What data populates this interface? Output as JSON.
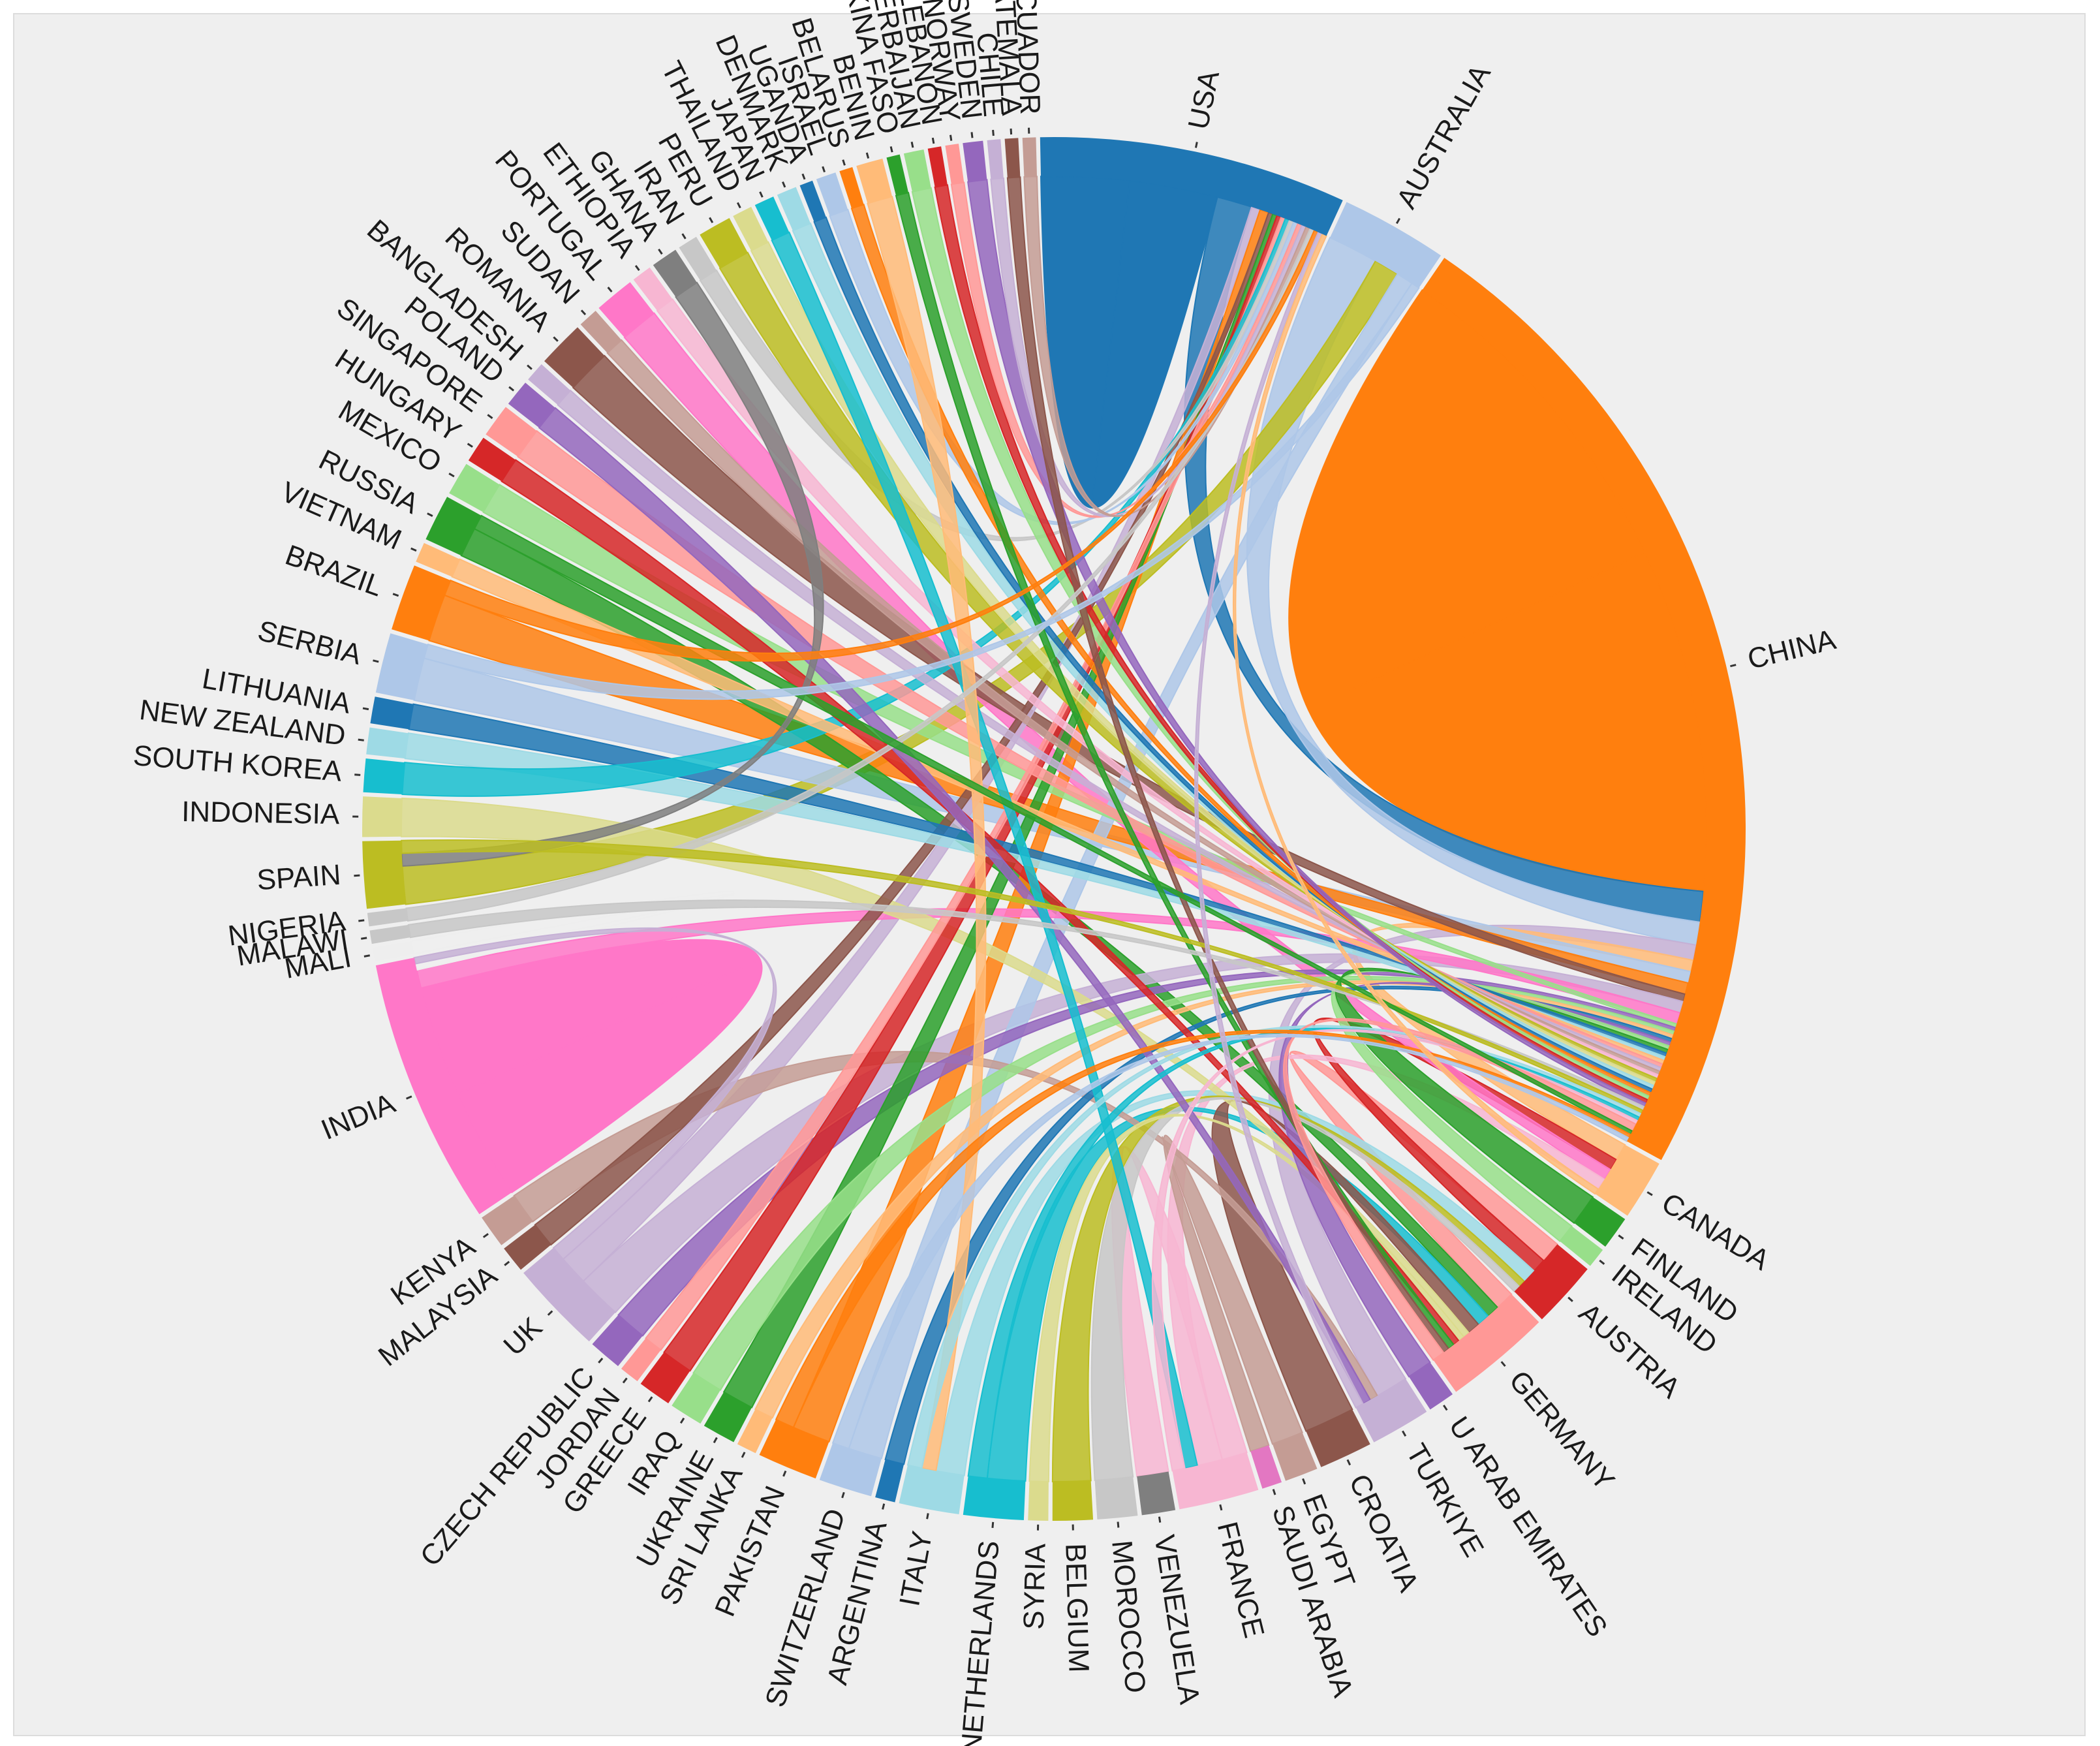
{
  "chart_data": {
    "type": "chord",
    "title": "",
    "ribbon_note": "weighted approximations of visible ribbon thickness",
    "countries": [
      {
        "name": "USA",
        "color": "#1f77b4",
        "weight": 46
      },
      {
        "name": "AUSTRALIA",
        "color": "#aec7e8",
        "weight": 16
      },
      {
        "name": "CHINA",
        "color": "#ff7f0e",
        "weight": 150
      },
      {
        "name": "CANADA",
        "color": "#ffbb78",
        "weight": 9
      },
      {
        "name": "FINLAND",
        "color": "#2ca02c",
        "weight": 5
      },
      {
        "name": "IRELAND",
        "color": "#98df8a",
        "weight": 3
      },
      {
        "name": "AUSTRIA",
        "color": "#d62728",
        "weight": 10
      },
      {
        "name": "GERMANY",
        "color": "#ff9896",
        "weight": 16
      },
      {
        "name": "U ARAB EMIRATES",
        "color": "#9467bd",
        "weight": 4
      },
      {
        "name": "TURKIYE",
        "color": "#c5b0d5",
        "weight": 9
      },
      {
        "name": "CROATIA",
        "color": "#8c564b",
        "weight": 8
      },
      {
        "name": "EGYPT",
        "color": "#c49c94",
        "weight": 5
      },
      {
        "name": "SAUDI ARABIA",
        "color": "#e377c2",
        "weight": 3
      },
      {
        "name": "FRANCE",
        "color": "#f7b6d2",
        "weight": 12
      },
      {
        "name": "VENEZUELA",
        "color": "#7f7f7f",
        "weight": 5
      },
      {
        "name": "MOROCCO",
        "color": "#c7c7c7",
        "weight": 6
      },
      {
        "name": "BELGIUM",
        "color": "#bcbd22",
        "weight": 6
      },
      {
        "name": "SYRIA",
        "color": "#dbdb8d",
        "weight": 3
      },
      {
        "name": "NETHERLANDS",
        "color": "#17becf",
        "weight": 9
      },
      {
        "name": "ITALY",
        "color": "#9edae5",
        "weight": 9
      },
      {
        "name": "ARGENTINA",
        "color": "#1f77b4",
        "weight": 3
      },
      {
        "name": "SWITZERLAND",
        "color": "#aec7e8",
        "weight": 8
      },
      {
        "name": "PAKISTAN",
        "color": "#ff7f0e",
        "weight": 9
      },
      {
        "name": "SRI LANKA",
        "color": "#ffbb78",
        "weight": 3
      },
      {
        "name": "UKRAINE",
        "color": "#2ca02c",
        "weight": 5
      },
      {
        "name": "IRAQ",
        "color": "#98df8a",
        "weight": 5
      },
      {
        "name": "GREECE",
        "color": "#d62728",
        "weight": 5
      },
      {
        "name": "JORDAN",
        "color": "#ff9896",
        "weight": 3
      },
      {
        "name": "CZECH REPUBLIC",
        "color": "#9467bd",
        "weight": 5
      },
      {
        "name": "UK",
        "color": "#c5b0d5",
        "weight": 14
      },
      {
        "name": "MALAYSIA",
        "color": "#8c564b",
        "weight": 4
      },
      {
        "name": "KENYA",
        "color": "#c49c94",
        "weight": 5
      },
      {
        "name": "INDIA",
        "color": "#ff77c8",
        "weight": 40
      },
      {
        "name": "MALI",
        "color": "#eeeeee",
        "weight": 2
      },
      {
        "name": "MALAWI",
        "color": "#c7c7c7",
        "weight": 2
      },
      {
        "name": "NIGERIA",
        "color": "#c7c7c7",
        "weight": 2
      },
      {
        "name": "SPAIN",
        "color": "#bcbd22",
        "weight": 10
      },
      {
        "name": "INDONESIA",
        "color": "#dbdb8d",
        "weight": 6
      },
      {
        "name": "SOUTH KOREA",
        "color": "#17becf",
        "weight": 5
      },
      {
        "name": "NEW ZEALAND",
        "color": "#9edae5",
        "weight": 4
      },
      {
        "name": "LITHUANIA",
        "color": "#1f77b4",
        "weight": 4
      },
      {
        "name": "SERBIA",
        "color": "#aec7e8",
        "weight": 9
      },
      {
        "name": "BRAZIL",
        "color": "#ff7f0e",
        "weight": 10
      },
      {
        "name": "VIETNAM",
        "color": "#ffbb78",
        "weight": 3
      },
      {
        "name": "RUSSIA",
        "color": "#2ca02c",
        "weight": 7
      },
      {
        "name": "MEXICO",
        "color": "#98df8a",
        "weight": 5
      },
      {
        "name": "HUNGARY",
        "color": "#d62728",
        "weight": 4
      },
      {
        "name": "SINGAPORE",
        "color": "#ff9896",
        "weight": 5
      },
      {
        "name": "POLAND",
        "color": "#9467bd",
        "weight": 4
      },
      {
        "name": "BANGLADESH",
        "color": "#c5b0d5",
        "weight": 3
      },
      {
        "name": "ROMANIA",
        "color": "#8c564b",
        "weight": 7
      },
      {
        "name": "SUDAN",
        "color": "#c49c94",
        "weight": 3
      },
      {
        "name": "PORTUGAL",
        "color": "#ff77c8",
        "weight": 6
      },
      {
        "name": "ETHIOPIA",
        "color": "#f7b6d2",
        "weight": 3
      },
      {
        "name": "GHANA",
        "color": "#7f7f7f",
        "weight": 4
      },
      {
        "name": "IRAN",
        "color": "#c7c7c7",
        "weight": 3
      },
      {
        "name": "PERU",
        "color": "#bcbd22",
        "weight": 5
      },
      {
        "name": "THAILAND",
        "color": "#dbdb8d",
        "weight": 3
      },
      {
        "name": "JAPAN",
        "color": "#17becf",
        "weight": 3
      },
      {
        "name": "DENMARK",
        "color": "#9edae5",
        "weight": 3
      },
      {
        "name": "UGANDA",
        "color": "#1f77b4",
        "weight": 2
      },
      {
        "name": "ISRAEL",
        "color": "#aec7e8",
        "weight": 3
      },
      {
        "name": "BELARUS",
        "color": "#ff7f0e",
        "weight": 2
      },
      {
        "name": "BENIN",
        "color": "#ffbb78",
        "weight": 4
      },
      {
        "name": "BURKINA FASO",
        "color": "#2ca02c",
        "weight": 2
      },
      {
        "name": "AZERBAIJAN",
        "color": "#98df8a",
        "weight": 3
      },
      {
        "name": "LEBANON",
        "color": "#d62728",
        "weight": 2
      },
      {
        "name": "NORWAY",
        "color": "#ff9896",
        "weight": 2
      },
      {
        "name": "SWEDEN",
        "color": "#9467bd",
        "weight": 3
      },
      {
        "name": "CHILE",
        "color": "#c5b0d5",
        "weight": 2
      },
      {
        "name": "GUATEMALA",
        "color": "#8c564b",
        "weight": 2
      },
      {
        "name": "ECUADOR",
        "color": "#c49c94",
        "weight": 2
      }
    ],
    "links": [
      [
        "CHINA",
        "CHINA",
        90
      ],
      [
        "USA",
        "USA",
        20
      ],
      [
        "INDIA",
        "INDIA",
        18
      ],
      [
        "USA",
        "CHINA",
        8
      ],
      [
        "AUSTRALIA",
        "CHINA",
        6
      ],
      [
        "TURKIYE",
        "CHINA",
        4
      ],
      [
        "CANADA",
        "CHINA",
        3
      ],
      [
        "GERMANY",
        "AUSTRIA",
        3
      ],
      [
        "AUSTRIA",
        "CANADA",
        2
      ],
      [
        "SPAIN",
        "AUSTRALIA",
        3
      ],
      [
        "SERBIA",
        "CHINA",
        3
      ],
      [
        "BRAZIL",
        "CHINA",
        3
      ],
      [
        "PORTUGAL",
        "CANADA",
        2
      ],
      [
        "ROMANIA",
        "CHINA",
        2
      ],
      [
        "RUSSIA",
        "GERMANY",
        2
      ],
      [
        "UK",
        "CHINA",
        3
      ],
      [
        "UK",
        "USA",
        2
      ],
      [
        "FRANCE",
        "VENEZUELA",
        2
      ],
      [
        "FRANCE",
        "CANADA",
        2
      ],
      [
        "NETHERLANDS",
        "GERMANY",
        2
      ],
      [
        "ITALY",
        "AUSTRIA",
        2
      ],
      [
        "PAKISTAN",
        "USA",
        2
      ],
      [
        "SWITZERLAND",
        "AUSTRALIA",
        2
      ],
      [
        "CROATIA",
        "GERMANY",
        2
      ],
      [
        "INDIA",
        "CHINA",
        3
      ],
      [
        "INDONESIA",
        "GERMANY",
        1
      ],
      [
        "MEXICO",
        "CHINA",
        1
      ],
      [
        "KENYA",
        "TURKIYE",
        1
      ],
      [
        "MALAYSIA",
        "USA",
        1
      ],
      [
        "CZECH REPUBLIC",
        "CHINA",
        1
      ],
      [
        "UKRAINE",
        "USA",
        1
      ],
      [
        "IRAQ",
        "CHINA",
        1
      ],
      [
        "GREECE",
        "USA",
        1
      ],
      [
        "JORDAN",
        "USA",
        1
      ],
      [
        "SRI LANKA",
        "CHINA",
        1
      ],
      [
        "ARGENTINA",
        "CHINA",
        1
      ],
      [
        "BELGIUM",
        "AUSTRIA",
        1
      ],
      [
        "MOROCCO",
        "AUSTRIA",
        1
      ],
      [
        "SYRIA",
        "GERMANY",
        1
      ],
      [
        "EGYPT",
        "SAUDI ARABIA",
        1
      ],
      [
        "U ARAB EMIRATES",
        "CHINA",
        1
      ],
      [
        "IRELAND",
        "CHINA",
        1
      ],
      [
        "FINLAND",
        "CHINA",
        1
      ],
      [
        "LITHUANIA",
        "CHINA",
        1
      ],
      [
        "NEW ZEALAND",
        "CHINA",
        1
      ],
      [
        "SOUTH KOREA",
        "USA",
        1
      ],
      [
        "VIETNAM",
        "CHINA",
        1
      ],
      [
        "HUNGARY",
        "GERMANY",
        1
      ],
      [
        "SINGAPORE",
        "CHINA",
        1
      ],
      [
        "POLAND",
        "TURKIYE",
        1
      ],
      [
        "BANGLADESH",
        "CHINA",
        1
      ],
      [
        "SUDAN",
        "CHINA",
        1
      ],
      [
        "ETHIOPIA",
        "CHINA",
        1
      ],
      [
        "GHANA",
        "SPAIN",
        1
      ],
      [
        "IRAN",
        "USA",
        1
      ],
      [
        "PERU",
        "CHINA",
        1
      ],
      [
        "THAILAND",
        "CHINA",
        1
      ],
      [
        "JAPAN",
        "FRANCE",
        1
      ],
      [
        "DENMARK",
        "CHINA",
        1
      ],
      [
        "UGANDA",
        "CHINA",
        1
      ],
      [
        "ISRAEL",
        "USA",
        1
      ],
      [
        "BELARUS",
        "CHINA",
        1
      ],
      [
        "BENIN",
        "ITALY",
        1
      ],
      [
        "BURKINA FASO",
        "GERMANY",
        1
      ],
      [
        "AZERBAIJAN",
        "CHINA",
        1
      ],
      [
        "LEBANON",
        "CHINA",
        1
      ],
      [
        "NORWAY",
        "USA",
        1
      ],
      [
        "SWEDEN",
        "CHINA",
        1
      ],
      [
        "CHILE",
        "USA",
        1
      ],
      [
        "GUATEMALA",
        "GERMANY",
        1
      ],
      [
        "ECUADOR",
        "USA",
        1
      ],
      [
        "MALI",
        "INDIA",
        1
      ],
      [
        "MALAWI",
        "CHINA",
        1
      ],
      [
        "NIGERIA",
        "USA",
        1
      ],
      [
        "SPAIN",
        "CHINA",
        1
      ],
      [
        "ITALY",
        "CHINA",
        1
      ],
      [
        "NETHERLANDS",
        "CHINA",
        1
      ],
      [
        "FRANCE",
        "CHINA",
        1
      ],
      [
        "GERMANY",
        "CHINA",
        2
      ],
      [
        "RUSSIA",
        "CHINA",
        1
      ],
      [
        "SERBIA",
        "AUSTRALIA",
        1
      ],
      [
        "BRAZIL",
        "USA",
        1
      ],
      [
        "PAKISTAN",
        "CHINA",
        1
      ],
      [
        "SWITZERLAND",
        "CHINA",
        1
      ],
      [
        "UK",
        "INDIA",
        1
      ],
      [
        "TURKIYE",
        "USA",
        1
      ],
      [
        "CANADA",
        "USA",
        1
      ]
    ]
  }
}
